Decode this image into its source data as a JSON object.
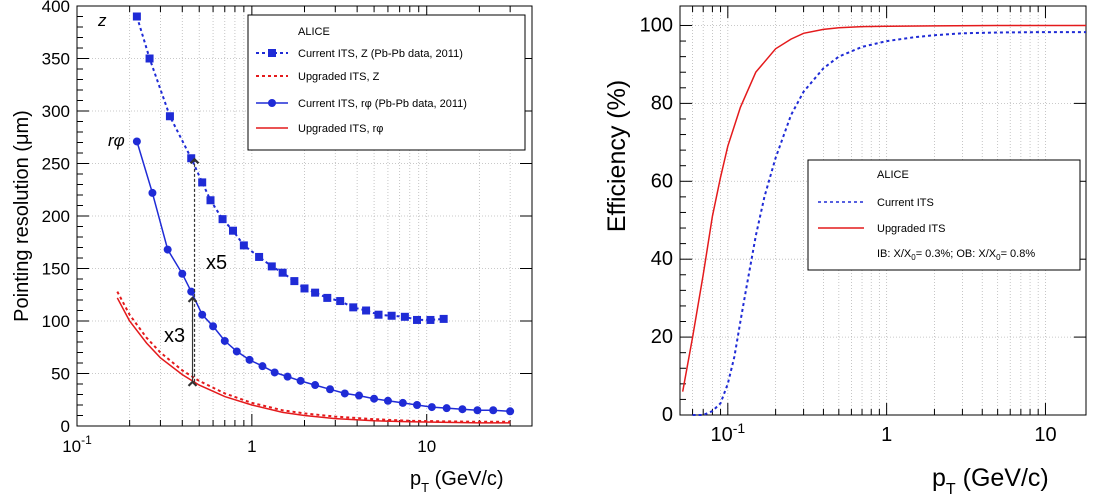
{
  "chart_data": [
    {
      "type": "line",
      "ylabel": "Pointing resolution  (μm)",
      "xlabel_main": "p",
      "xlabel_sub": "T",
      "xlabel_units": " (GeV/c)",
      "xscale": "log",
      "xlim": [
        0.1,
        40
      ],
      "ylim": [
        0,
        400
      ],
      "xticks": [
        {
          "value": 0.1,
          "base": "10",
          "exp": "-1"
        },
        {
          "value": 1,
          "base": "1",
          "exp": ""
        },
        {
          "value": 10,
          "base": "10",
          "exp": ""
        }
      ],
      "yticks": [
        0,
        50,
        100,
        150,
        200,
        250,
        300,
        350,
        400
      ],
      "grid": true,
      "legend_position": "top-right",
      "legend_title": "ALICE",
      "series": [
        {
          "name": "Current ITS, Z (Pb-Pb data, 2011)",
          "color": "#1f2bd6",
          "dash": "dotted",
          "marker": "square",
          "x": [
            0.22,
            0.26,
            0.34,
            0.45,
            0.52,
            0.58,
            0.68,
            0.78,
            0.9,
            1.1,
            1.3,
            1.5,
            1.75,
            2.0,
            2.3,
            2.7,
            3.2,
            3.8,
            4.5,
            5.3,
            6.3,
            7.5,
            8.8,
            10.5,
            12.5
          ],
          "y": [
            390,
            350,
            295,
            255,
            232,
            215,
            197,
            186,
            172,
            161,
            152,
            146,
            138,
            131,
            127,
            122,
            119,
            113,
            110,
            106,
            105,
            104,
            101,
            101,
            102
          ]
        },
        {
          "name": "Upgraded ITS, Z",
          "color": "#e41a1c",
          "dash": "dotted",
          "marker": "none",
          "x": [
            0.17,
            0.2,
            0.25,
            0.3,
            0.4,
            0.5,
            0.7,
            1.0,
            1.5,
            2.0,
            3.0,
            5.0,
            8.0,
            12.0,
            20.0,
            30.0
          ],
          "y": [
            128,
            106,
            84,
            70,
            53,
            43,
            31,
            22,
            15,
            12,
            9,
            6.5,
            5,
            4.5,
            4,
            4
          ]
        },
        {
          "name": "Current ITS, rφ (Pb-Pb data, 2011)",
          "color": "#1f2bd6",
          "dash": "solid",
          "marker": "circle",
          "x": [
            0.22,
            0.27,
            0.33,
            0.4,
            0.45,
            0.52,
            0.6,
            0.7,
            0.82,
            0.97,
            1.15,
            1.35,
            1.6,
            1.9,
            2.3,
            2.8,
            3.4,
            4.1,
            5.0,
            6.0,
            7.3,
            8.8,
            10.7,
            13.0,
            16.0,
            19.5,
            24.0,
            30.0
          ],
          "y": [
            271,
            222,
            168,
            145,
            128,
            106,
            95,
            81,
            71,
            63,
            57,
            51,
            47,
            43,
            39,
            35,
            31,
            29,
            26,
            24,
            22,
            20,
            18,
            17,
            16,
            15,
            15,
            14
          ]
        },
        {
          "name": "Upgraded ITS, rφ",
          "color": "#e41a1c",
          "dash": "solid",
          "marker": "none",
          "x": [
            0.17,
            0.2,
            0.25,
            0.3,
            0.4,
            0.5,
            0.7,
            1.0,
            1.5,
            2.0,
            3.0,
            5.0,
            8.0,
            12.0,
            20.0,
            30.0
          ],
          "y": [
            122,
            100,
            79,
            65,
            49,
            39,
            28,
            20,
            13,
            10,
            7,
            5,
            4,
            3.5,
            3,
            3
          ]
        }
      ],
      "annotations": {
        "z_label": "z",
        "rphi_label": "rφ",
        "factor_z": "x5",
        "factor_rphi": "x3",
        "arrow_x": 0.47,
        "arrow_from": 42,
        "arrow_mid": 122,
        "arrow_to": 254
      }
    },
    {
      "type": "line",
      "ylabel": "Efficiency (%)",
      "xlabel_main": "p",
      "xlabel_sub": "T",
      "xlabel_units": " (GeV/c)",
      "xscale": "log",
      "xlim": [
        0.05,
        18
      ],
      "ylim": [
        0,
        105
      ],
      "xticks": [
        {
          "value": 0.1,
          "base": "10",
          "exp": "-1"
        },
        {
          "value": 1,
          "base": "1",
          "exp": ""
        },
        {
          "value": 10,
          "base": "10",
          "exp": ""
        }
      ],
      "yticks": [
        0,
        20,
        40,
        60,
        80,
        100
      ],
      "grid": true,
      "legend_position": "center-right",
      "legend_title": "ALICE",
      "legend_note": {
        "part1": "IB: X/X",
        "sub1": "0",
        "part2": "= 0.3%; OB: X/X",
        "sub2": "0",
        "part3": "= 0.8%"
      },
      "series": [
        {
          "name": "Current ITS",
          "color": "#1f2bd6",
          "dash": "dotted",
          "x": [
            0.06,
            0.07,
            0.08,
            0.09,
            0.1,
            0.11,
            0.12,
            0.13,
            0.15,
            0.17,
            0.2,
            0.25,
            0.3,
            0.4,
            0.5,
            0.7,
            1.0,
            1.5,
            2.0,
            3.0,
            5.0,
            10.0,
            18.0
          ],
          "y": [
            0,
            0,
            1,
            3,
            8,
            15,
            24,
            32,
            46,
            56,
            66,
            77,
            83,
            89,
            92,
            94.5,
            96,
            97,
            97.5,
            98,
            98.2,
            98.3,
            98.3
          ]
        },
        {
          "name": "Upgraded ITS",
          "color": "#e41a1c",
          "dash": "solid",
          "x": [
            0.052,
            0.06,
            0.07,
            0.08,
            0.09,
            0.1,
            0.12,
            0.15,
            0.2,
            0.25,
            0.3,
            0.4,
            0.5,
            0.7,
            1.0,
            2.0,
            5.0,
            10.0,
            18.0
          ],
          "y": [
            6,
            20,
            36,
            51,
            61,
            69,
            79,
            88,
            94,
            96.5,
            98,
            99,
            99.4,
            99.7,
            99.8,
            99.9,
            100,
            100,
            100
          ]
        }
      ]
    }
  ]
}
